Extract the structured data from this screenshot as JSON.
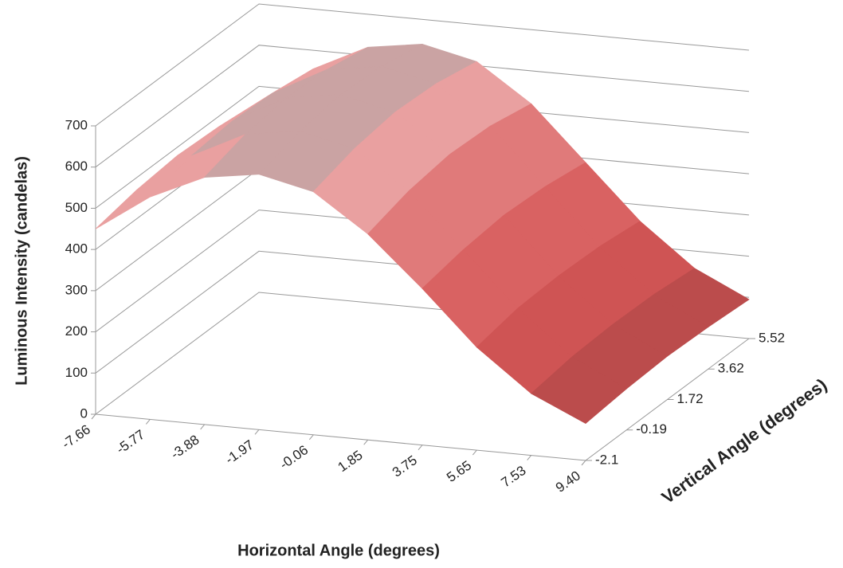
{
  "chart_data": {
    "type": "surface",
    "x_title": "Horizontal Angle (degrees)",
    "y_title": "Luminous Intensity (candelas)",
    "z_title": "Vertical Angle (degrees)",
    "categories": [
      "-7.66",
      "-5.77",
      "-3.88",
      "-1.97",
      "-0.06",
      "1.85",
      "3.75",
      "5.65",
      "7.53",
      "9.40"
    ],
    "series": [
      {
        "name": "-2.1",
        "values": [
          450,
          540,
          600,
          620,
          590,
          500,
          380,
          250,
          150,
          90
        ]
      },
      {
        "name": "-0.19",
        "values": [
          470,
          565,
          630,
          650,
          620,
          530,
          400,
          270,
          165,
          100
        ]
      },
      {
        "name": "1.72",
        "values": [
          480,
          575,
          645,
          665,
          635,
          545,
          410,
          275,
          170,
          105
        ]
      },
      {
        "name": "3.62",
        "values": [
          475,
          570,
          640,
          660,
          630,
          540,
          405,
          272,
          168,
          102
        ]
      },
      {
        "name": "5.52",
        "values": [
          460,
          555,
          620,
          640,
          610,
          520,
          390,
          260,
          158,
          95
        ]
      }
    ],
    "ylim": [
      0,
      700
    ],
    "yticks": [
      0,
      100,
      200,
      300,
      400,
      500,
      600,
      700
    ],
    "band_colors": [
      "#a84646",
      "#bb4c4c",
      "#cf5454",
      "#d96262",
      "#e07a7a",
      "#e9a0a0",
      "#caa3a3"
    ],
    "grid": true
  }
}
